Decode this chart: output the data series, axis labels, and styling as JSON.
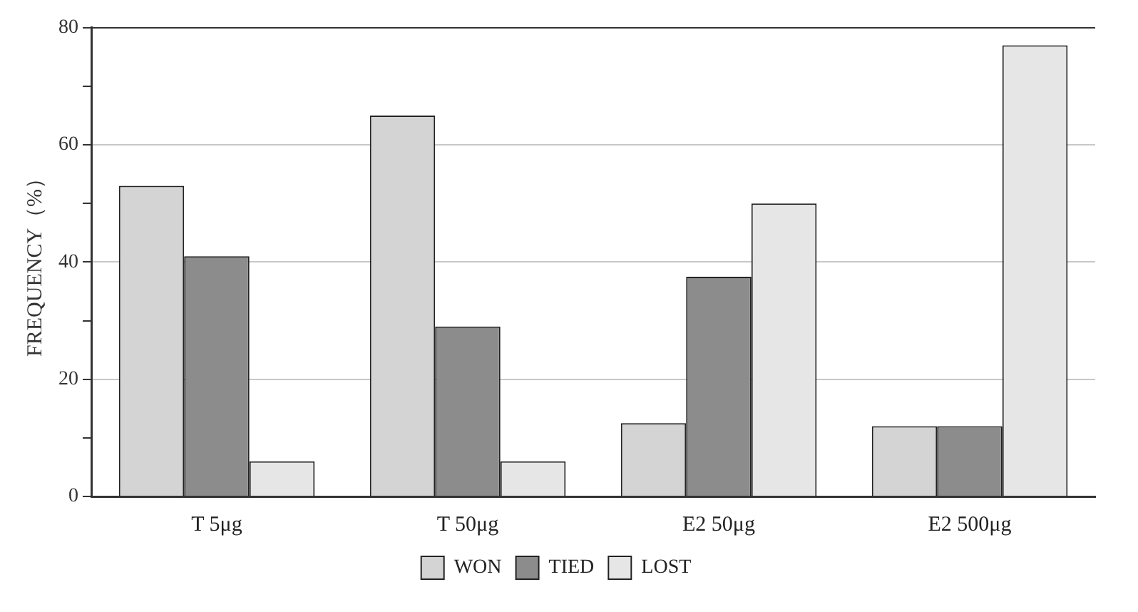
{
  "chart_data": {
    "type": "bar",
    "ylabel": "FREQUENCY（%）",
    "categories": [
      "T 5μg",
      "T 50μg",
      "E2 50μg",
      "E2 500μg"
    ],
    "series": [
      {
        "name": "WON",
        "color": "#d4d4d4",
        "values": [
          53,
          65,
          12.5,
          12
        ]
      },
      {
        "name": "TIED",
        "color": "#8c8c8c",
        "values": [
          41,
          29,
          37.5,
          12
        ]
      },
      {
        "name": "LOST",
        "color": "#e6e6e6",
        "values": [
          6,
          6,
          50,
          77
        ]
      }
    ],
    "ylim": [
      0,
      80
    ],
    "yticks": [
      0,
      {
        "value": 10,
        "label": null
      },
      20,
      {
        "value": 30,
        "label": null
      },
      40,
      {
        "value": 50,
        "label": null
      },
      60,
      {
        "value": 70,
        "label": null
      },
      80
    ],
    "grid": "y",
    "legend": "bottom"
  }
}
